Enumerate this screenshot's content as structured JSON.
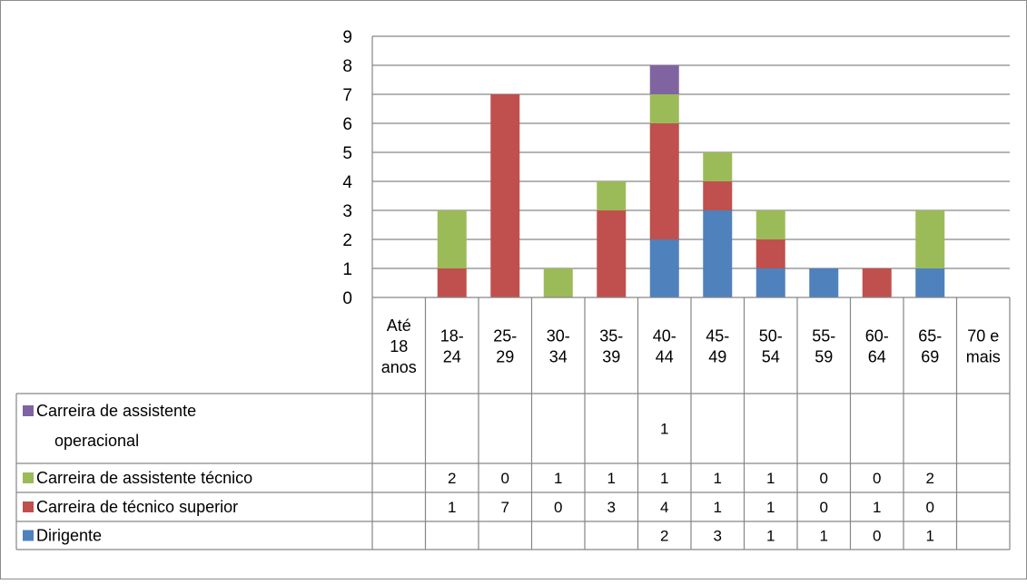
{
  "chart_data": {
    "type": "bar",
    "stacked": true,
    "categories": [
      [
        "Até",
        "18",
        "anos"
      ],
      [
        "18-",
        "24"
      ],
      [
        "25-",
        "29"
      ],
      [
        "30-",
        "34"
      ],
      [
        "35-",
        "39"
      ],
      [
        "40-",
        "44"
      ],
      [
        "45-",
        "49"
      ],
      [
        "50-",
        "54"
      ],
      [
        "55-",
        "59"
      ],
      [
        "60-",
        "64"
      ],
      [
        "65-",
        "69"
      ],
      [
        "70 e",
        "mais"
      ]
    ],
    "ylim": [
      0,
      9
    ],
    "yticks": [
      "0",
      "1",
      "2",
      "3",
      "4",
      "5",
      "6",
      "7",
      "8",
      "9"
    ],
    "grid": true,
    "data_table": true,
    "series": [
      {
        "name": "Dirigente",
        "color": "#4f81bd",
        "values": [
          null,
          null,
          null,
          null,
          null,
          2,
          3,
          1,
          1,
          0,
          1,
          null
        ]
      },
      {
        "name": "Carreira de técnico superior",
        "color": "#c0504d",
        "values": [
          null,
          1,
          7,
          0,
          3,
          4,
          1,
          1,
          0,
          1,
          0,
          null
        ]
      },
      {
        "name": "Carreira de assistente técnico",
        "color": "#9bbb59",
        "values": [
          null,
          2,
          0,
          1,
          1,
          1,
          1,
          1,
          0,
          0,
          2,
          null
        ]
      },
      {
        "name": "Carreira de assistente operacional",
        "color": "#8064a2",
        "legend_lines": [
          "Carreira de assistente",
          "operacional"
        ],
        "values": [
          null,
          null,
          null,
          null,
          null,
          1,
          null,
          null,
          null,
          null,
          null,
          null
        ]
      }
    ]
  }
}
